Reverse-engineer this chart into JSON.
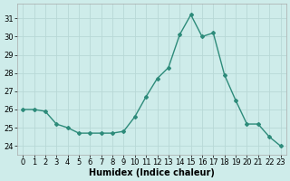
{
  "x": [
    0,
    1,
    2,
    3,
    4,
    5,
    6,
    7,
    8,
    9,
    10,
    11,
    12,
    13,
    14,
    15,
    16,
    17,
    18,
    19,
    20,
    21,
    22,
    23
  ],
  "y": [
    26.0,
    26.0,
    25.9,
    25.2,
    25.0,
    24.7,
    24.7,
    24.7,
    24.7,
    24.8,
    25.6,
    26.7,
    27.7,
    28.3,
    30.1,
    31.2,
    30.0,
    30.2,
    27.9,
    26.5,
    25.2,
    25.2,
    24.5,
    24.0
  ],
  "line_color": "#2d8b7a",
  "marker": "D",
  "marker_size": 2.0,
  "line_width": 1.0,
  "bg_color": "#ceecea",
  "grid_color": "#b8d8d6",
  "xlabel": "Humidex (Indice chaleur)",
  "xlabel_fontsize": 7,
  "tick_fontsize": 6,
  "ylim": [
    23.5,
    31.8
  ],
  "yticks": [
    24,
    25,
    26,
    27,
    28,
    29,
    30,
    31
  ],
  "xticks": [
    0,
    1,
    2,
    3,
    4,
    5,
    6,
    7,
    8,
    9,
    10,
    11,
    12,
    13,
    14,
    15,
    16,
    17,
    18,
    19,
    20,
    21,
    22,
    23
  ],
  "xlim": [
    -0.5,
    23.5
  ]
}
